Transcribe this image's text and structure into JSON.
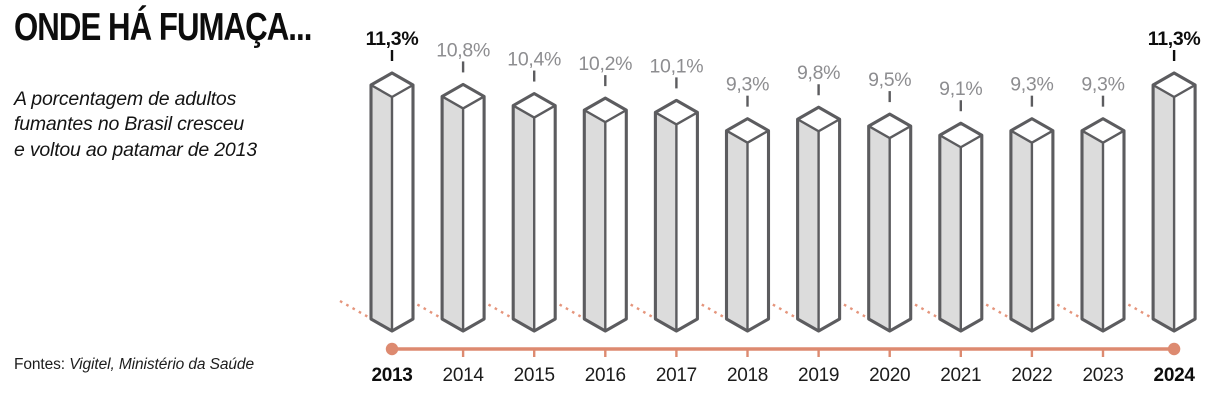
{
  "chart_data": {
    "type": "bar",
    "style": "isometric-3d-pillars-on-orange-timeline",
    "title": "ONDE HÁ FUMAÇA...",
    "subtitle": "A porcentagem de adultos\nfumantes no Brasil cresceu\ne voltou ao patamar de 2013",
    "categories": [
      "2013",
      "2014",
      "2015",
      "2016",
      "2017",
      "2018",
      "2019",
      "2020",
      "2021",
      "2022",
      "2023",
      "2024"
    ],
    "values": [
      11.3,
      10.8,
      10.4,
      10.2,
      10.1,
      9.3,
      9.8,
      9.5,
      9.1,
      9.3,
      9.3,
      11.3
    ],
    "value_labels": [
      "11,3%",
      "10,8%",
      "10,4%",
      "10,2%",
      "10,1%",
      "9,3%",
      "9,8%",
      "9,5%",
      "9,1%",
      "9,3%",
      "9,3%",
      "11,3%"
    ],
    "unit": "%",
    "ylim": [
      0,
      11.3
    ],
    "grid": false,
    "legend": null,
    "emphasized_indices": [
      0,
      11
    ],
    "colors": {
      "timeline": "#dd8a70",
      "dotted_guide": "#e5957c",
      "bar_outline": "#5c5c5f",
      "bar_side": "#dcdcdc",
      "bar_face": "#ffffff",
      "value_label_gray": "#8d8d90",
      "emphasis_black": "#0e0e0e",
      "year_label": "#1c1c1c"
    }
  },
  "source": {
    "label": "Fontes:",
    "value": "Vigitel, Ministério da Saúde"
  }
}
